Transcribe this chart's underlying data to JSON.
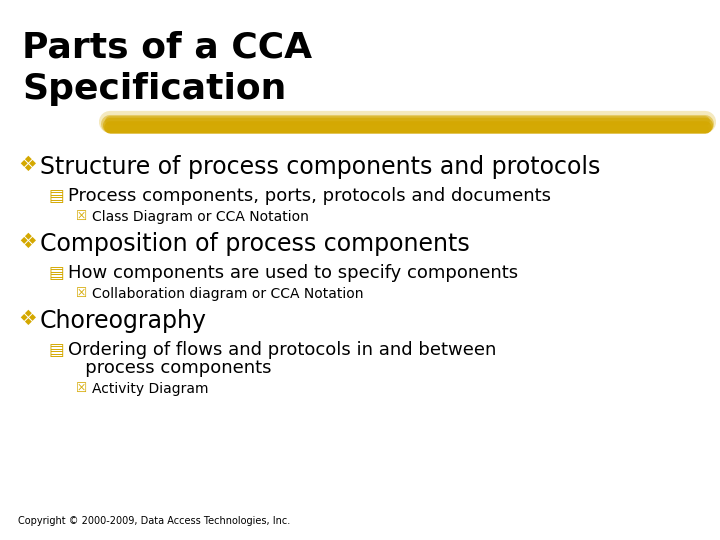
{
  "background_color": "#ffffff",
  "title_line1": "Parts of a CCA",
  "title_line2": "Specification",
  "title_color": "#000000",
  "title_fontsize": 26,
  "bullet_color": "#d4a800",
  "bullet1_text": "Structure of process components and protocols",
  "bullet1_fontsize": 17,
  "sub1_bullet_text": "Process components, ports, protocols and documents",
  "sub1_fontsize": 13,
  "sub1_sub_text": "Class Diagram or CCA Notation",
  "sub1_sub_fontsize": 10,
  "bullet2_text": "Composition of process components",
  "bullet2_fontsize": 17,
  "sub2_bullet_text": "How components are used to specify components",
  "sub2_fontsize": 13,
  "sub2_sub_text": "Collaboration diagram or CCA Notation",
  "sub2_sub_fontsize": 10,
  "bullet3_text": "Choreography",
  "bullet3_fontsize": 17,
  "sub3_bullet_text1": "Ordering of flows and protocols in and between",
  "sub3_bullet_text2": "   process components",
  "sub3_fontsize": 13,
  "sub3_sub_text": "Activity Diagram",
  "sub3_sub_fontsize": 10,
  "copyright_text": "Copyright © 2000-2009, Data Access Technologies, Inc.",
  "copyright_fontsize": 7,
  "highlight_color": "#d4a800"
}
